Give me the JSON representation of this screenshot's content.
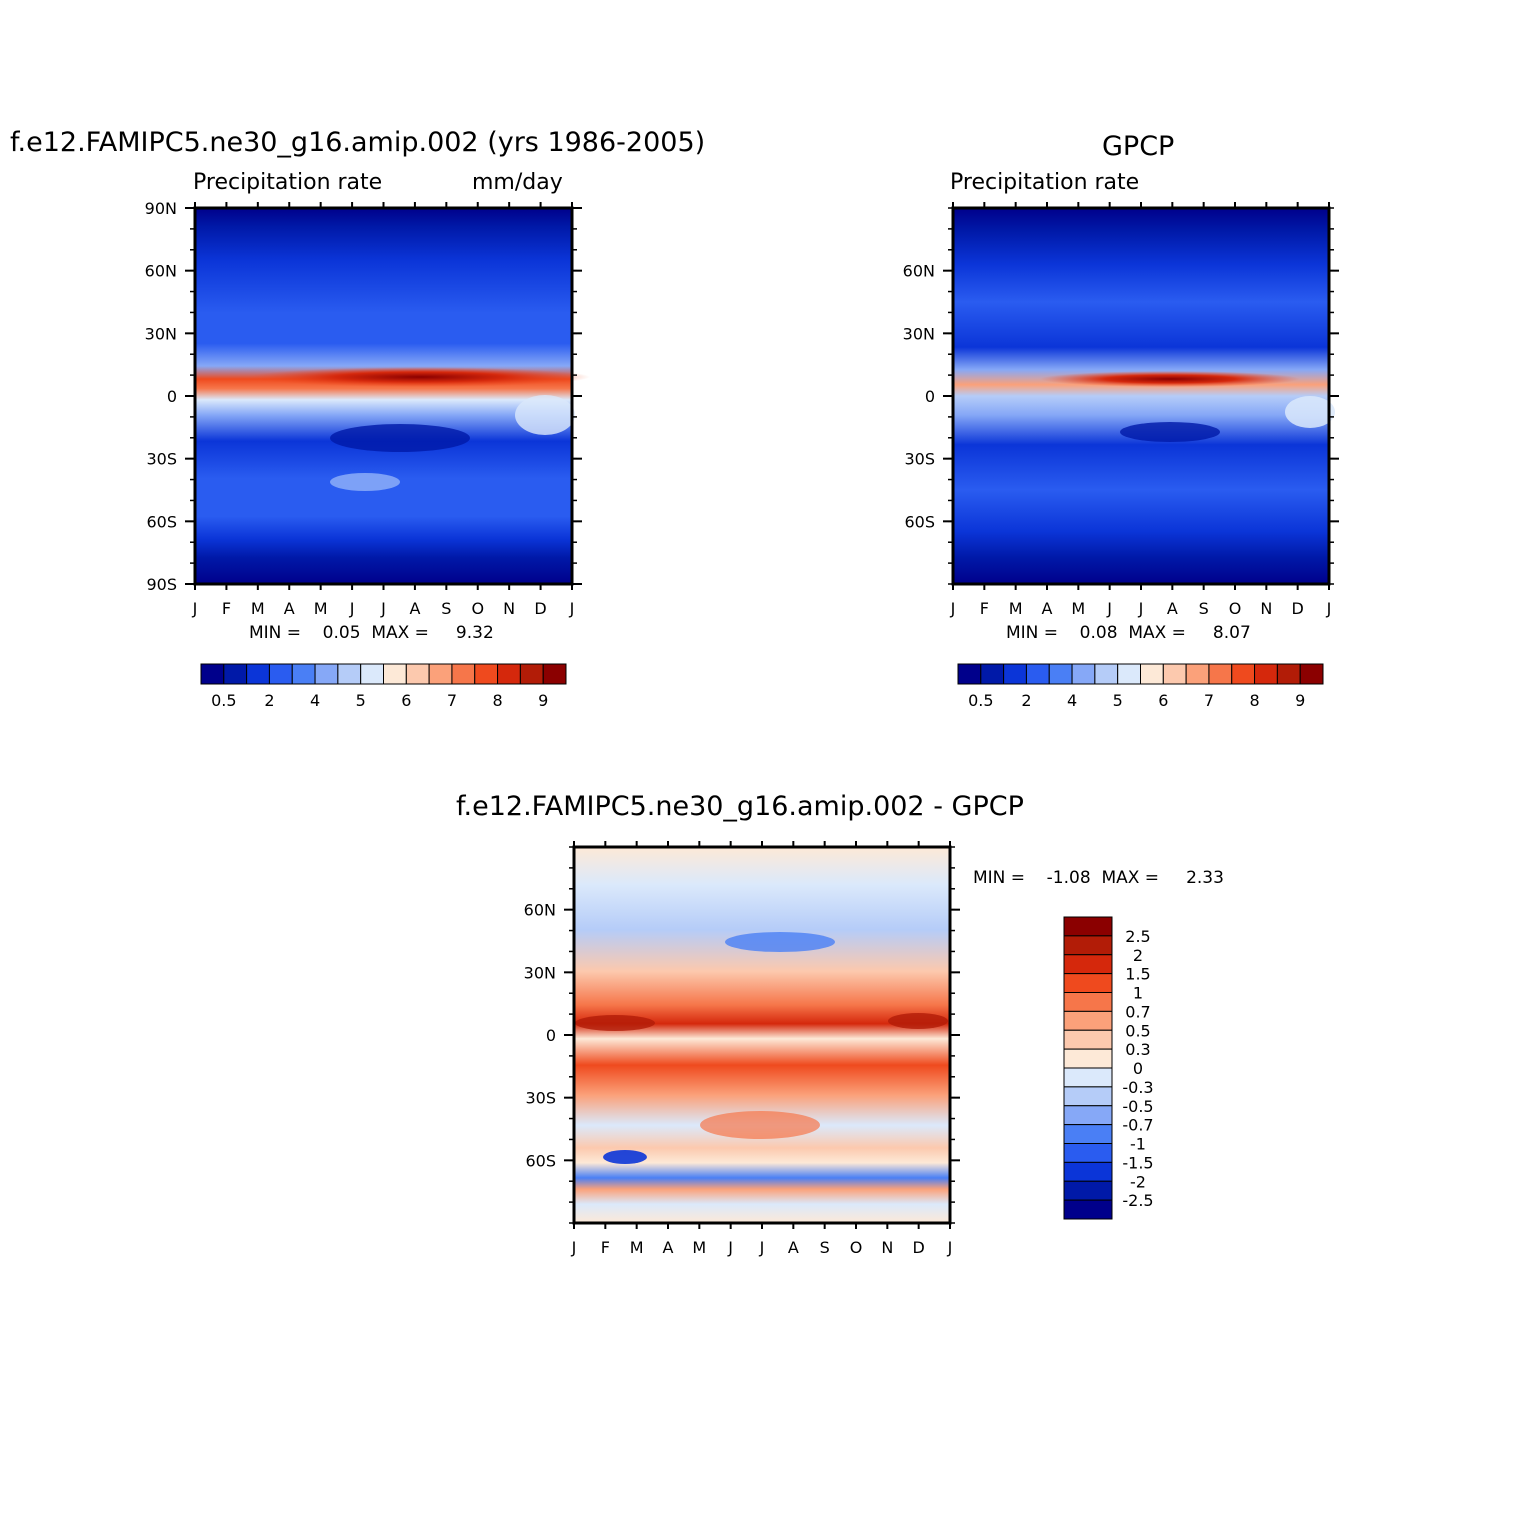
{
  "colors": {
    "precip_levels": [
      "#00008b",
      "#0019a8",
      "#0b35d8",
      "#2a5cf0",
      "#4a7ff5",
      "#86a8f7",
      "#b5ccf8",
      "#dbe9fb",
      "#fde9d7",
      "#fcc9ae",
      "#fba17a",
      "#f6764a",
      "#ef4a1e",
      "#d5280c",
      "#b21c07",
      "#8b0000"
    ],
    "diff_levels": [
      "#00008b",
      "#0019a8",
      "#0b35d8",
      "#2a5cf0",
      "#4a7ff5",
      "#86a8f7",
      "#b5ccf8",
      "#dbe9fb",
      "#fde9d7",
      "#fcc9ae",
      "#fba17a",
      "#f6764a",
      "#ef4a1e",
      "#d5280c",
      "#b21c07",
      "#8b0000"
    ]
  },
  "chart_data": [
    {
      "type": "heatmap",
      "id": "model",
      "title": "f.e12.FAMIPC5.ne30_g16.amip.002 (yrs 1986-2005)",
      "left_label": "Precipitation rate",
      "right_label": "mm/day",
      "stat_text": "MIN =    0.05  MAX =     9.32",
      "min": 0.05,
      "max": 9.32,
      "x_ticks": [
        "J",
        "F",
        "M",
        "A",
        "M",
        "J",
        "J",
        "A",
        "S",
        "O",
        "N",
        "D",
        "J"
      ],
      "y_ticks": [
        "90N",
        "60N",
        "30N",
        "0",
        "30S",
        "60S",
        "90S"
      ],
      "ylim": [
        -90,
        90
      ],
      "colorbar_labels": [
        "0.5",
        "2",
        "4",
        "5",
        "6",
        "7",
        "8",
        "9"
      ]
    },
    {
      "type": "heatmap",
      "id": "obs",
      "title": "GPCP",
      "left_label": "Precipitation rate",
      "right_label": "",
      "stat_text": "MIN =    0.08  MAX =     8.07",
      "min": 0.08,
      "max": 8.07,
      "x_ticks": [
        "J",
        "F",
        "M",
        "A",
        "M",
        "J",
        "J",
        "A",
        "S",
        "O",
        "N",
        "D",
        "J"
      ],
      "y_ticks": [
        "60N",
        "30N",
        "0",
        "30S",
        "60S"
      ],
      "ylim": [
        -90,
        90
      ],
      "colorbar_labels": [
        "0.5",
        "2",
        "4",
        "5",
        "6",
        "7",
        "8",
        "9"
      ]
    },
    {
      "type": "heatmap",
      "id": "diff",
      "title": "f.e12.FAMIPC5.ne30_g16.amip.002 - GPCP",
      "stat_text": "MIN =    -1.08  MAX =     2.33",
      "min": -1.08,
      "max": 2.33,
      "x_ticks": [
        "J",
        "F",
        "M",
        "A",
        "M",
        "J",
        "J",
        "A",
        "S",
        "O",
        "N",
        "D",
        "J"
      ],
      "y_ticks": [
        "60N",
        "30N",
        "0",
        "30S",
        "60S"
      ],
      "ylim": [
        -90,
        90
      ],
      "colorbar_labels": [
        "2.5",
        "2",
        "1.5",
        "1",
        "0.7",
        "0.5",
        "0.3",
        "0",
        "-0.3",
        "-0.5",
        "-0.7",
        "-1",
        "-1.5",
        "-2",
        "-2.5"
      ]
    }
  ]
}
